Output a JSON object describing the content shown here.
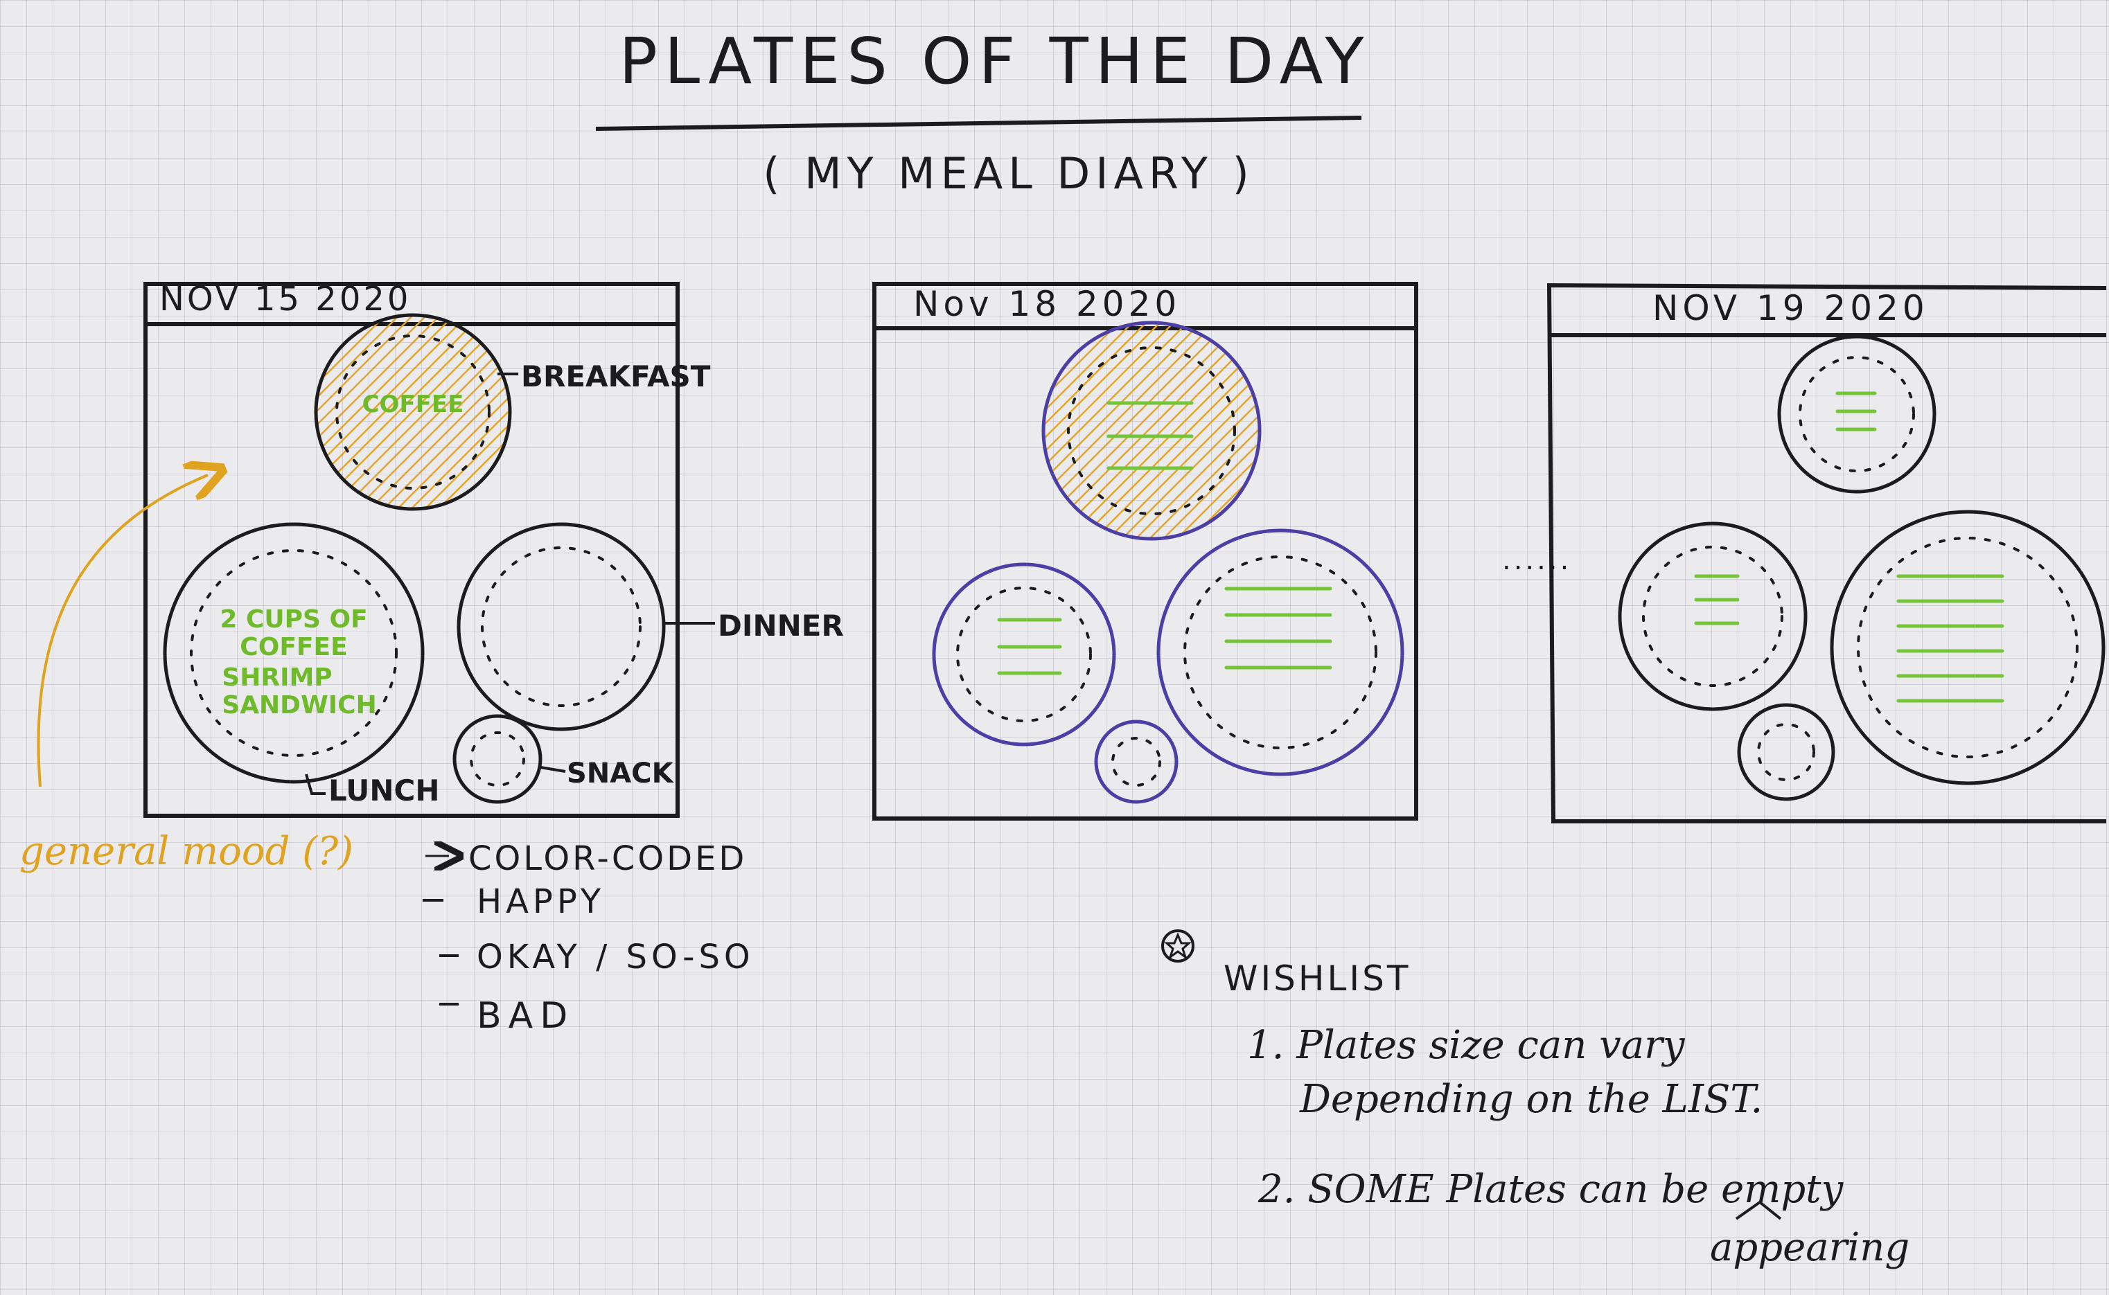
{
  "title": "PLATES OF THE DAY",
  "subtitle": "( MY MEAL DIARY )",
  "days": [
    {
      "date": "NOV 15 2020",
      "labels": {
        "breakfast": "BREAKFAST",
        "dinner": "DINNER",
        "lunch": "LUNCH",
        "snack": "SNACK"
      },
      "breakfast_text": "COFFEE",
      "lunch_text": [
        "2 CUPS OF",
        "COFFEE",
        "SHRIMP",
        "SANDWICH"
      ]
    },
    {
      "date": "Nov 18 2020"
    },
    {
      "date": "NOV 19 2020"
    }
  ],
  "ellipsis": "......",
  "mood": {
    "label": "general mood (?)",
    "arrow_text": "COLOR-CODED",
    "items": [
      "HAPPY",
      "OKAY / SO-SO",
      "BAD"
    ]
  },
  "wishlist": {
    "title": "WISHLIST",
    "items": [
      [
        "1. Plates size can vary",
        "Depending on the LIST."
      ],
      [
        "2. SOME Plates can be empty"
      ]
    ],
    "insert": "appearing"
  },
  "colors": {
    "ink": "#1c1c1f",
    "mood_orange": "#e0a31f",
    "food_green": "#74c53a",
    "plate_purple": "#4b3fa5"
  }
}
